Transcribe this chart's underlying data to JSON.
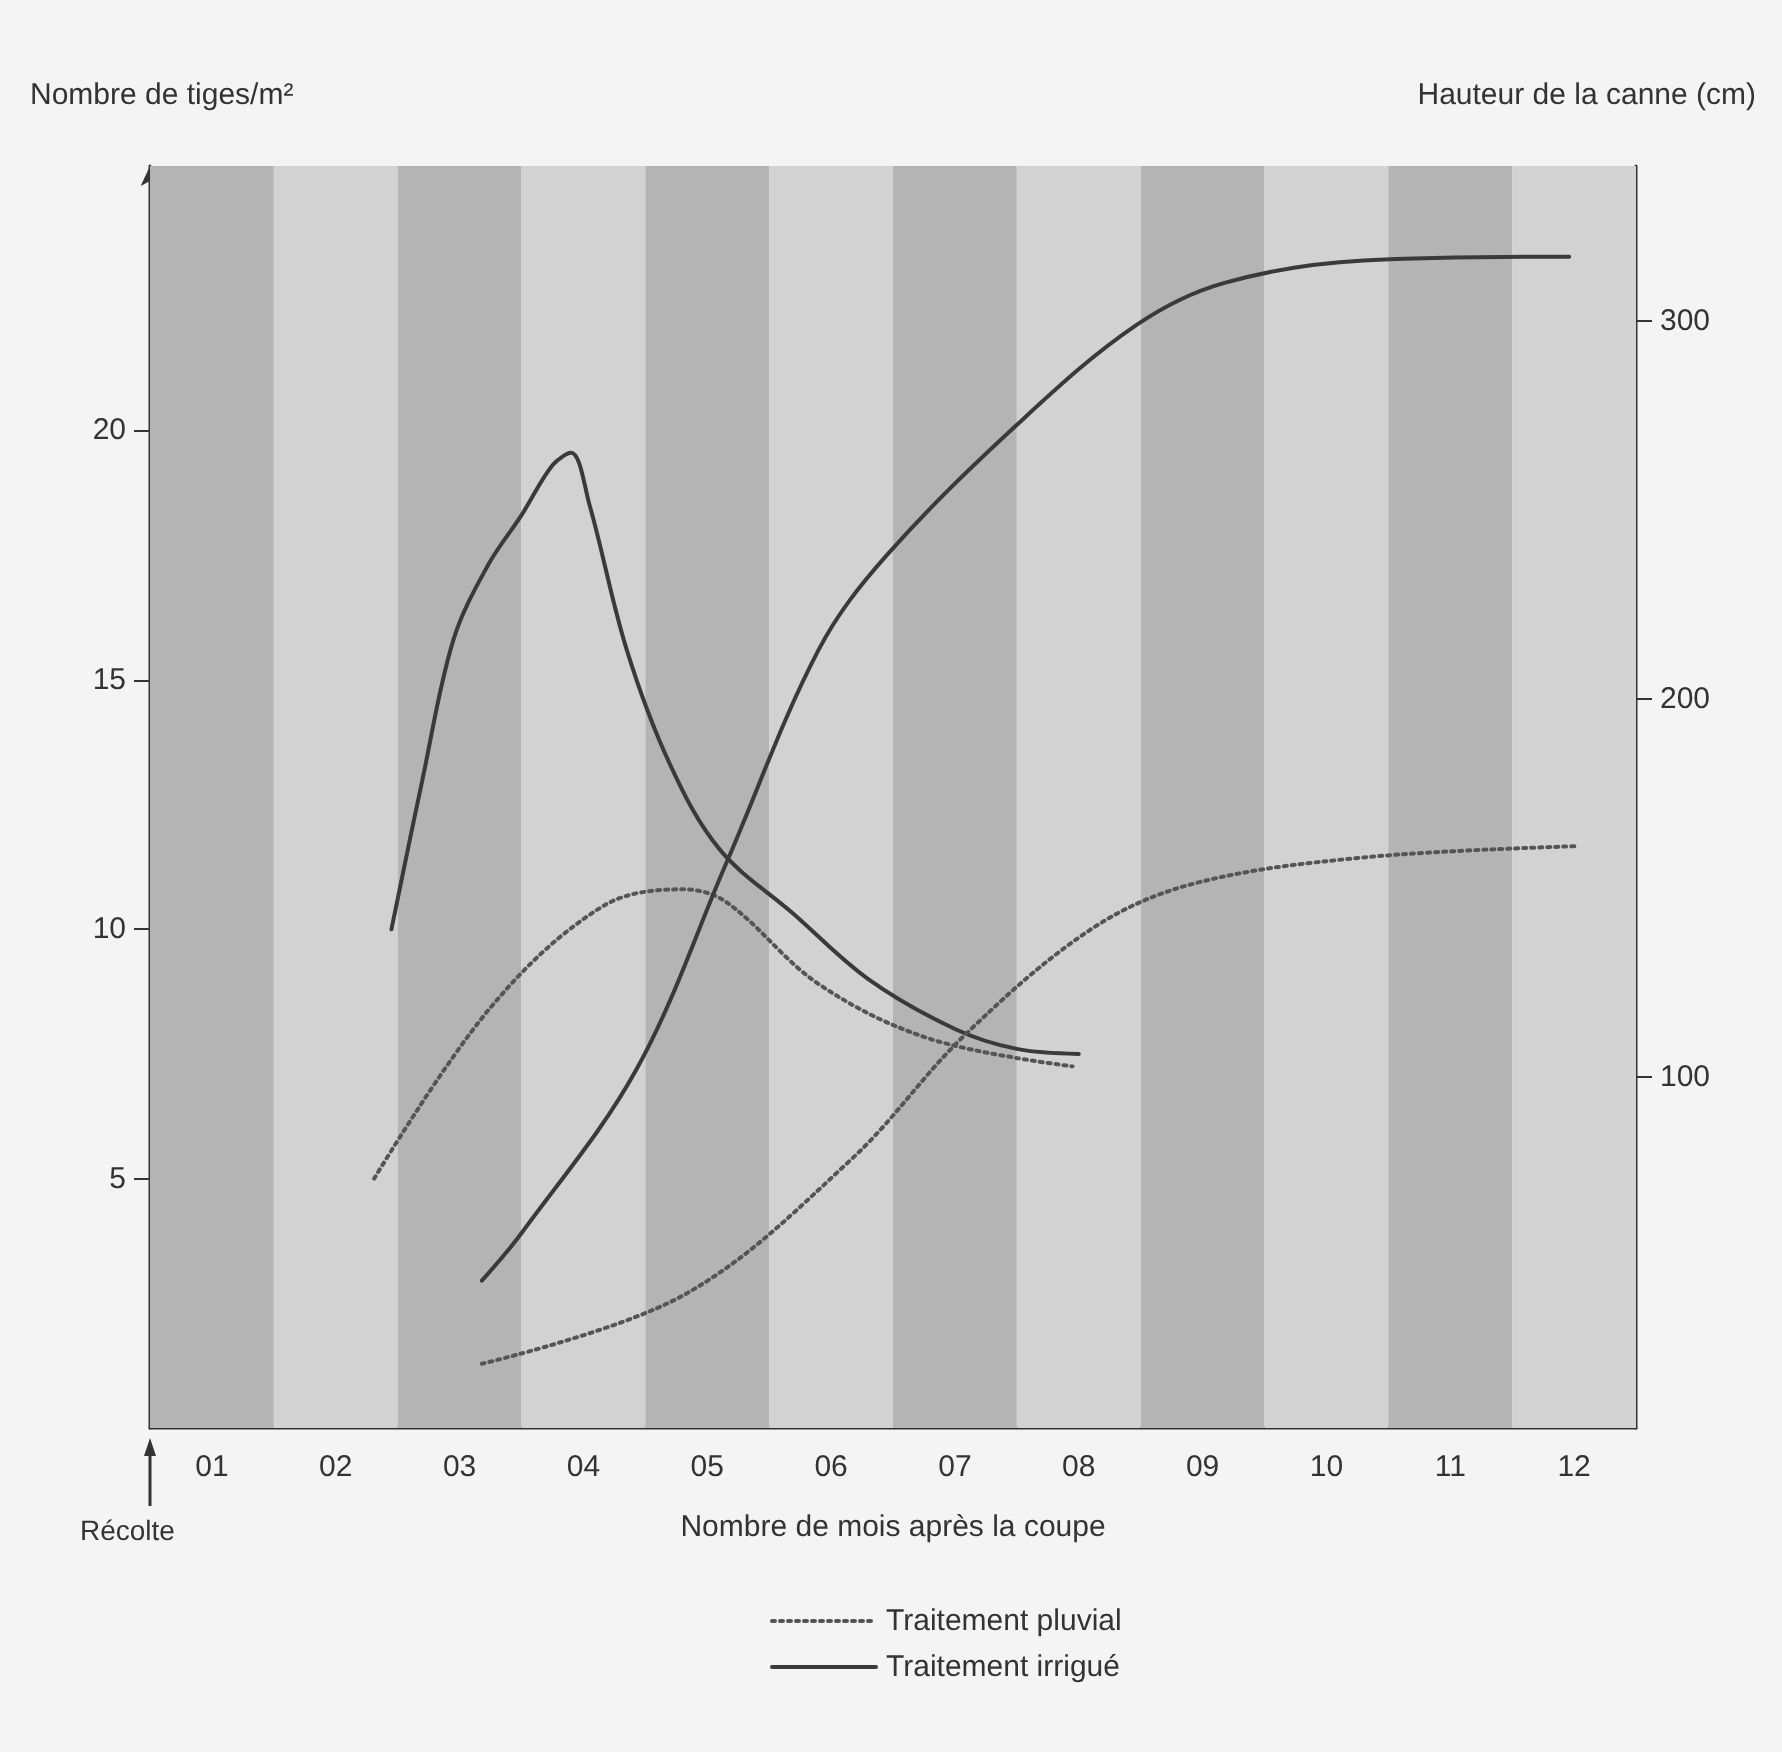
{
  "chart_data": {
    "type": "line",
    "xlabel": "Nombre de mois après la coupe",
    "ylabel": "Nombre de tiges/m²",
    "y2label": "Hauteur de la canne (cm)",
    "legend": "bottom",
    "marker": "none",
    "xlim": [
      0,
      12
    ],
    "xticks": [
      {
        "value": 0.5,
        "label": "01"
      },
      {
        "value": 1.5,
        "label": "02"
      },
      {
        "value": 2.5,
        "label": "03"
      },
      {
        "value": 3.5,
        "label": "04"
      },
      {
        "value": 4.5,
        "label": "05"
      },
      {
        "value": 5.5,
        "label": "06"
      },
      {
        "value": 6.5,
        "label": "07"
      },
      {
        "value": 7.5,
        "label": "08"
      },
      {
        "value": 8.5,
        "label": "09"
      },
      {
        "value": 9.5,
        "label": "10"
      },
      {
        "value": 10.5,
        "label": "11"
      },
      {
        "value": 11.5,
        "label": "12"
      }
    ],
    "ylim": [
      0,
      25.3
    ],
    "yticks": [
      5,
      10,
      15,
      20
    ],
    "y2lim": [
      7,
      341
    ],
    "y2ticks": [
      100,
      200,
      300
    ],
    "annotations": [
      "Récolte"
    ],
    "bands": [
      {
        "axis": "x",
        "from": 0,
        "to": 1,
        "color": "#b4b4b4"
      },
      {
        "axis": "x",
        "from": 1,
        "to": 2,
        "color": "#d2d2d2"
      },
      {
        "axis": "x",
        "from": 2,
        "to": 3,
        "color": "#b4b4b4"
      },
      {
        "axis": "x",
        "from": 3,
        "to": 4,
        "color": "#d2d2d2"
      },
      {
        "axis": "x",
        "from": 4,
        "to": 5,
        "color": "#b4b4b4"
      },
      {
        "axis": "x",
        "from": 5,
        "to": 6,
        "color": "#d2d2d2"
      },
      {
        "axis": "x",
        "from": 6,
        "to": 7,
        "color": "#b4b4b4"
      },
      {
        "axis": "x",
        "from": 7,
        "to": 8,
        "color": "#d2d2d2"
      },
      {
        "axis": "x",
        "from": 8,
        "to": 9,
        "color": "#b4b4b4"
      },
      {
        "axis": "x",
        "from": 9,
        "to": 10,
        "color": "#d2d2d2"
      },
      {
        "axis": "x",
        "from": 10,
        "to": 11,
        "color": "#b4b4b4"
      },
      {
        "axis": "x",
        "from": 11,
        "to": 12,
        "color": "#d2d2d2"
      }
    ],
    "series": [
      {
        "name": "Traitement pluvial",
        "color": "#555555",
        "line_style": "dotted",
        "x": [
          1.81,
          2.74,
          3.65,
          4.3,
          4.65,
          5.4,
          6.3,
          7.45
        ],
        "values": [
          5.0,
          8.4,
          10.45,
          10.8,
          10.55,
          8.9,
          7.8,
          7.25
        ]
      },
      {
        "name": "Traitement irrigué",
        "color": "#3a3a3a",
        "line_style": "solid",
        "x": [
          1.95,
          2.2,
          2.45,
          2.73,
          3.0,
          3.25,
          3.4,
          3.55,
          3.85,
          4.2,
          4.6,
          5.2,
          5.8,
          6.5,
          7.0,
          7.5
        ],
        "values": [
          10.0,
          13.0,
          15.8,
          17.3,
          18.3,
          19.3,
          19.55,
          18.5,
          15.6,
          13.3,
          11.6,
          10.3,
          9.0,
          8.0,
          7.6,
          7.5
        ]
      },
      {
        "color": "#555555",
        "line_style": "dotted",
        "axis": "y2",
        "x": [
          2.68,
          4.3,
          5.66,
          6.58,
          7.6,
          8.42,
          9.8,
          11.54
        ],
        "values": [
          24,
          42,
          78,
          111,
          139,
          151,
          158,
          161
        ]
      },
      {
        "color": "#3a3a3a",
        "line_style": "solid",
        "axis": "y2",
        "x": [
          2.68,
          3.01,
          3.93,
          4.66,
          5.4,
          5.95,
          7.05,
          7.97,
          8.67,
          9.8,
          11.46
        ],
        "values": [
          46,
          59,
          102,
          157,
          213,
          238,
          274,
          299,
          310,
          316,
          317
        ]
      }
    ]
  }
}
